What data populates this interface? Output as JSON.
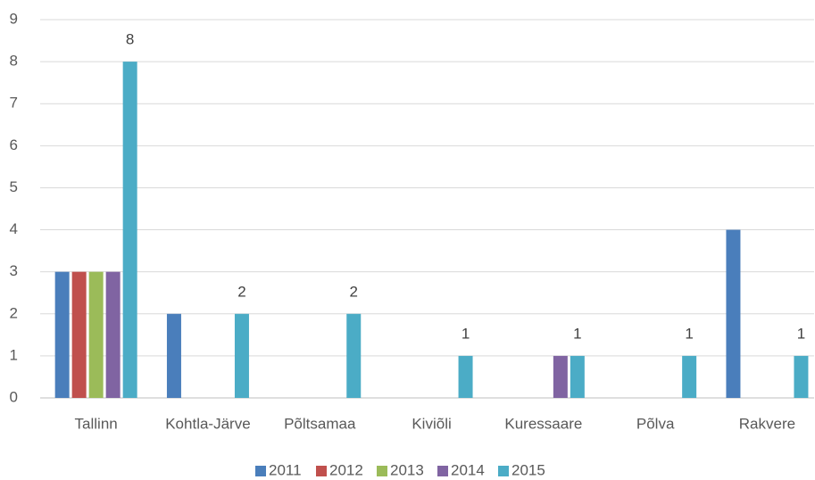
{
  "chart_data": {
    "type": "bar",
    "categories": [
      "Tallinn",
      "Kohtla-Järve",
      "Põltsamaa",
      "Kiviõli",
      "Kuressaare",
      "Põlva",
      "Rakvere"
    ],
    "series": [
      {
        "name": "2011",
        "color": "#4a7ebb",
        "values": [
          3,
          2,
          null,
          null,
          null,
          null,
          4
        ]
      },
      {
        "name": "2012",
        "color": "#c0504d",
        "values": [
          3,
          null,
          null,
          null,
          null,
          null,
          null
        ]
      },
      {
        "name": "2013",
        "color": "#9bbb59",
        "values": [
          3,
          null,
          null,
          null,
          null,
          null,
          null
        ]
      },
      {
        "name": "2014",
        "color": "#8064a2",
        "values": [
          3,
          null,
          null,
          null,
          1,
          null,
          null
        ]
      },
      {
        "name": "2015",
        "color": "#4bacc6",
        "values": [
          8,
          2,
          2,
          1,
          1,
          1,
          1
        ],
        "show_labels": true
      }
    ],
    "ylim": [
      0,
      9
    ],
    "yticks": [
      0,
      1,
      2,
      3,
      4,
      5,
      6,
      7,
      8,
      9
    ],
    "grid": true,
    "legend": "bottom"
  }
}
